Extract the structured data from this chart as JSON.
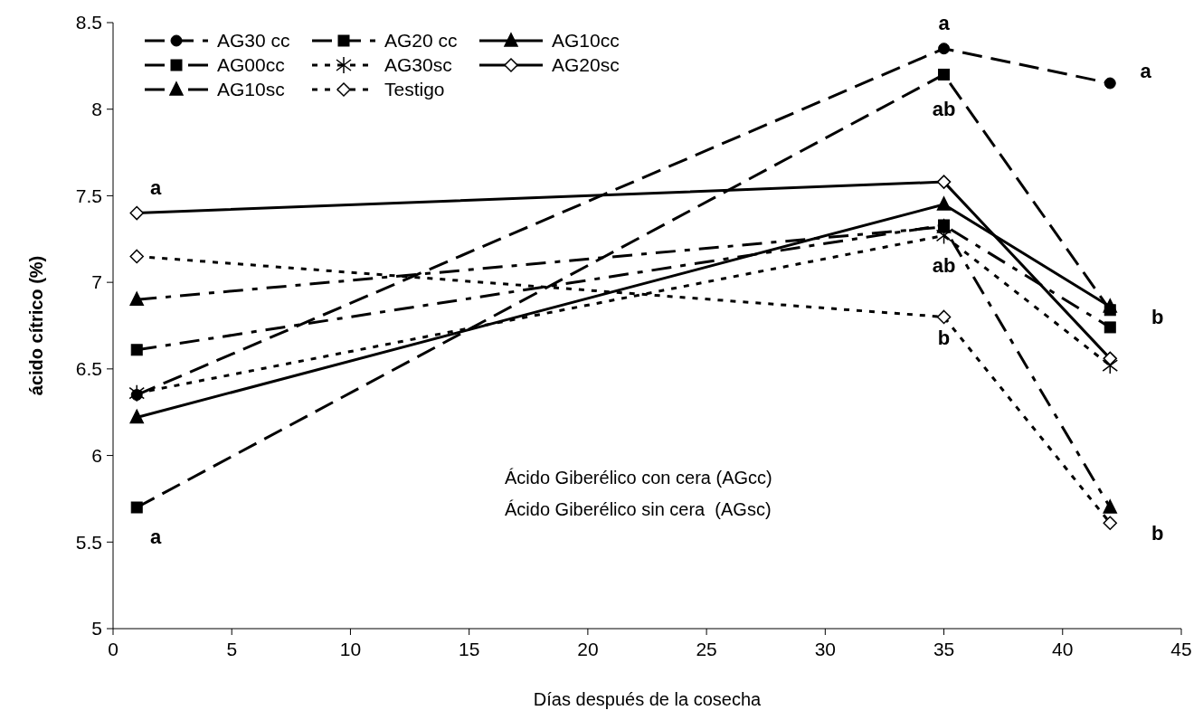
{
  "chart_data": {
    "type": "line",
    "xlabel": "Días después de la cosecha",
    "ylabel": "ácido cítrico (%)",
    "x": [
      1,
      35,
      42
    ],
    "series": [
      {
        "name": "AG30 cc",
        "color": "#000000",
        "values": [
          6.35,
          8.35,
          8.15
        ],
        "marker": "circle",
        "line_style": "dashed"
      },
      {
        "name": "AG20 cc",
        "color": "#000000",
        "values": [
          5.7,
          8.2,
          6.84
        ],
        "marker": "square",
        "line_style": "dashed"
      },
      {
        "name": "AG10cc",
        "color": "#000000",
        "values": [
          6.22,
          7.45,
          6.86
        ],
        "marker": "triangle",
        "line_style": "solid"
      },
      {
        "name": "AG00cc",
        "color": "#000000",
        "values": [
          6.61,
          7.33,
          6.74
        ],
        "marker": "square",
        "line_style": "dashdot"
      },
      {
        "name": "AG30sc",
        "color": "#000000",
        "values": [
          6.36,
          7.27,
          6.52
        ],
        "marker": "cross",
        "line_style": "dotted"
      },
      {
        "name": "AG20sc",
        "color": "#000000",
        "values": [
          7.4,
          7.58,
          6.56
        ],
        "marker": "diamond",
        "line_style": "solid"
      },
      {
        "name": "AG10sc",
        "color": "#000000",
        "values": [
          6.9,
          7.32,
          5.7
        ],
        "marker": "triangle",
        "line_style": "dashdot"
      },
      {
        "name": "Testigo",
        "color": "#000000",
        "values": [
          7.15,
          6.8,
          5.61
        ],
        "marker": "diamond",
        "line_style": "dotted"
      }
    ],
    "xlim": [
      0,
      45
    ],
    "xticks": [
      0,
      5,
      10,
      15,
      20,
      25,
      30,
      35,
      40,
      45
    ],
    "ylim": [
      5,
      8.5
    ],
    "yticks": [
      5,
      5.5,
      6,
      6.5,
      7,
      7.5,
      8,
      8.5
    ],
    "grid": false,
    "legend": "top left",
    "annotations": [
      "a",
      "a",
      "a",
      "ab",
      "ab",
      "b",
      "a",
      "b",
      "b",
      "Ácido Giberélico con cera (AGcc)",
      "Ácido Giberélico sin cera  (AGsc)"
    ]
  }
}
